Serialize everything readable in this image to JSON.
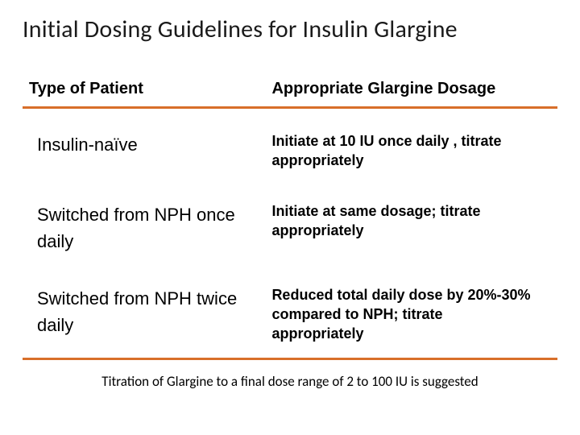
{
  "title": "Initial Dosing Guidelines for Insulin Glargine",
  "colors": {
    "accent_rule": "#d86f2a",
    "text": "#000000",
    "background": "#ffffff"
  },
  "table": {
    "headers": {
      "left": "Type of Patient",
      "right": "Appropriate  Glargine  Dosage"
    },
    "rows": [
      {
        "patient": "Insulin-naïve",
        "dosage": "Initiate at 10 IU once daily , titrate appropriately"
      },
      {
        "patient": "Switched from NPH once daily",
        "dosage": "Initiate at same dosage; titrate appropriately"
      },
      {
        "patient": "Switched from NPH  twice daily",
        "dosage": "Reduced total daily dose by  20%-30% compared to NPH;  titrate appropriately"
      }
    ]
  },
  "footnote": "Titration of Glargine  to a final dose range of 2 to 100 IU is suggested"
}
